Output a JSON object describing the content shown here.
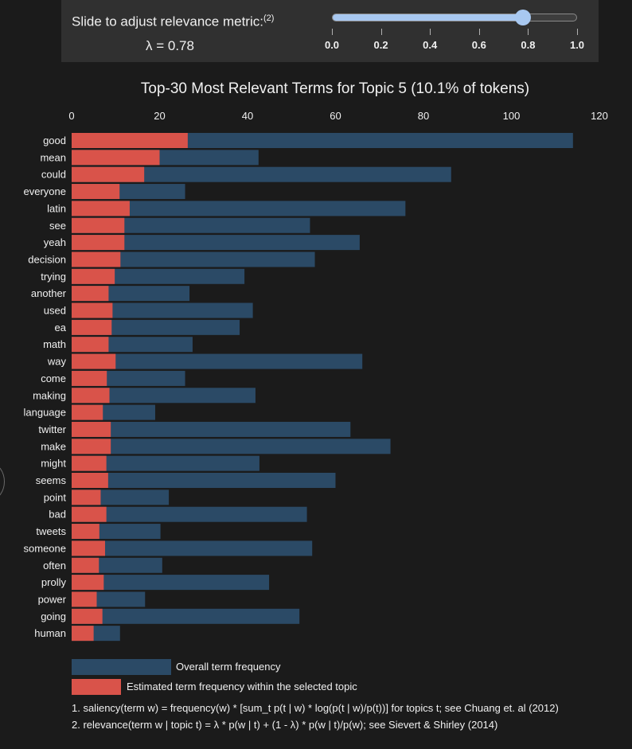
{
  "slider": {
    "label": "Slide to adjust relevance metric:",
    "label_note": "(2)",
    "lambda_readout": "λ = 0.78",
    "value": 0.78,
    "min": 0,
    "max": 1,
    "tick_labels": [
      "0.0",
      "0.2",
      "0.4",
      "0.6",
      "0.8",
      "1.0"
    ]
  },
  "chart_data": {
    "type": "bar",
    "orientation": "horizontal",
    "title": "Top-30 Most Relevant Terms for Topic 5 (10.1% of tokens)",
    "xlim": [
      0,
      120
    ],
    "x_ticks": [
      "0",
      "20",
      "40",
      "60",
      "80",
      "100",
      "120"
    ],
    "categories": [
      "good",
      "mean",
      "could",
      "everyone",
      "latin",
      "see",
      "yeah",
      "decision",
      "trying",
      "another",
      "used",
      "ea",
      "math",
      "way",
      "come",
      "making",
      "language",
      "twitter",
      "make",
      "might",
      "seems",
      "point",
      "bad",
      "tweets",
      "someone",
      "often",
      "prolly",
      "power",
      "going",
      "human"
    ],
    "series": [
      {
        "name": "Overall term frequency",
        "color": "#2b4a66",
        "values": [
          114,
          42.5,
          86.3,
          25.8,
          75.9,
          54.2,
          65.5,
          55.3,
          39.3,
          26.8,
          41.2,
          38.2,
          27.5,
          66.1,
          25.8,
          41.8,
          19,
          63.4,
          72.5,
          42.7,
          60,
          22.1,
          53.5,
          20.2,
          54.7,
          20.6,
          44.9,
          16.7,
          51.8,
          11
        ]
      },
      {
        "name": "Estimated term frequency within the selected topic",
        "color": "#d9534a",
        "values": [
          26.4,
          20,
          16.5,
          10.9,
          13.2,
          12,
          12,
          11.1,
          9.8,
          8.4,
          9.3,
          9.1,
          8.4,
          10,
          8,
          8.6,
          7.1,
          8.9,
          8.9,
          7.9,
          8.3,
          6.6,
          7.9,
          6.3,
          7.6,
          6.2,
          7.3,
          5.7,
          7,
          5
        ]
      }
    ],
    "legend": [
      {
        "label": "Overall term frequency",
        "color": "#2b4a66"
      },
      {
        "label": "Estimated term frequency within the selected topic",
        "color": "#d9534a"
      }
    ]
  },
  "footnotes": [
    "1. saliency(term w) = frequency(w) * [sum_t p(t | w) * log(p(t | w)/p(t))] for topics t; see Chuang et. al (2012)",
    "2. relevance(term w | topic t) = λ * p(w | t) + (1 - λ) * p(w | t)/p(w); see Sievert & Shirley (2014)"
  ]
}
